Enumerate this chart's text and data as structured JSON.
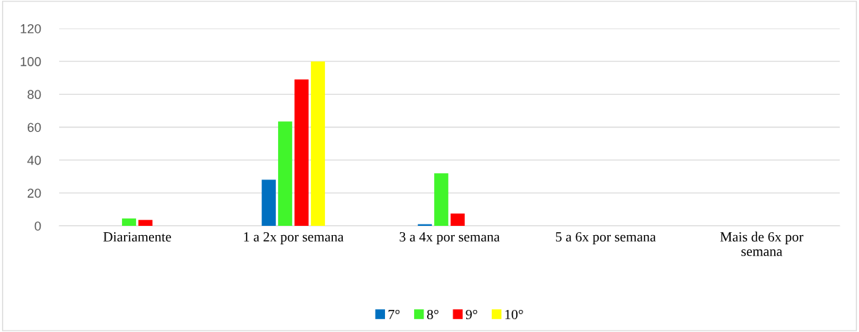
{
  "chart_data": {
    "type": "bar",
    "categories": [
      "Diariamente",
      "1 a 2x por semana",
      "3 a 4x por semana",
      "5 a 6x por semana",
      "Mais de 6x por\nsemana"
    ],
    "series": [
      {
        "name": "7°",
        "color": "#0070c0",
        "values": [
          0,
          28,
          1,
          0,
          0
        ]
      },
      {
        "name": "8°",
        "color": "#41f52b",
        "values": [
          4.5,
          63.5,
          32,
          0,
          0
        ]
      },
      {
        "name": "9°",
        "color": "#ff0000",
        "values": [
          3.6,
          89,
          7.5,
          0,
          0
        ]
      },
      {
        "name": "10°",
        "color": "#ffff00",
        "values": [
          0,
          100,
          0,
          0,
          0
        ]
      }
    ],
    "ylim": [
      0,
      120
    ],
    "yticks": [
      0,
      20,
      40,
      60,
      80,
      100,
      120
    ],
    "grid": "y",
    "legend": "bottom"
  }
}
